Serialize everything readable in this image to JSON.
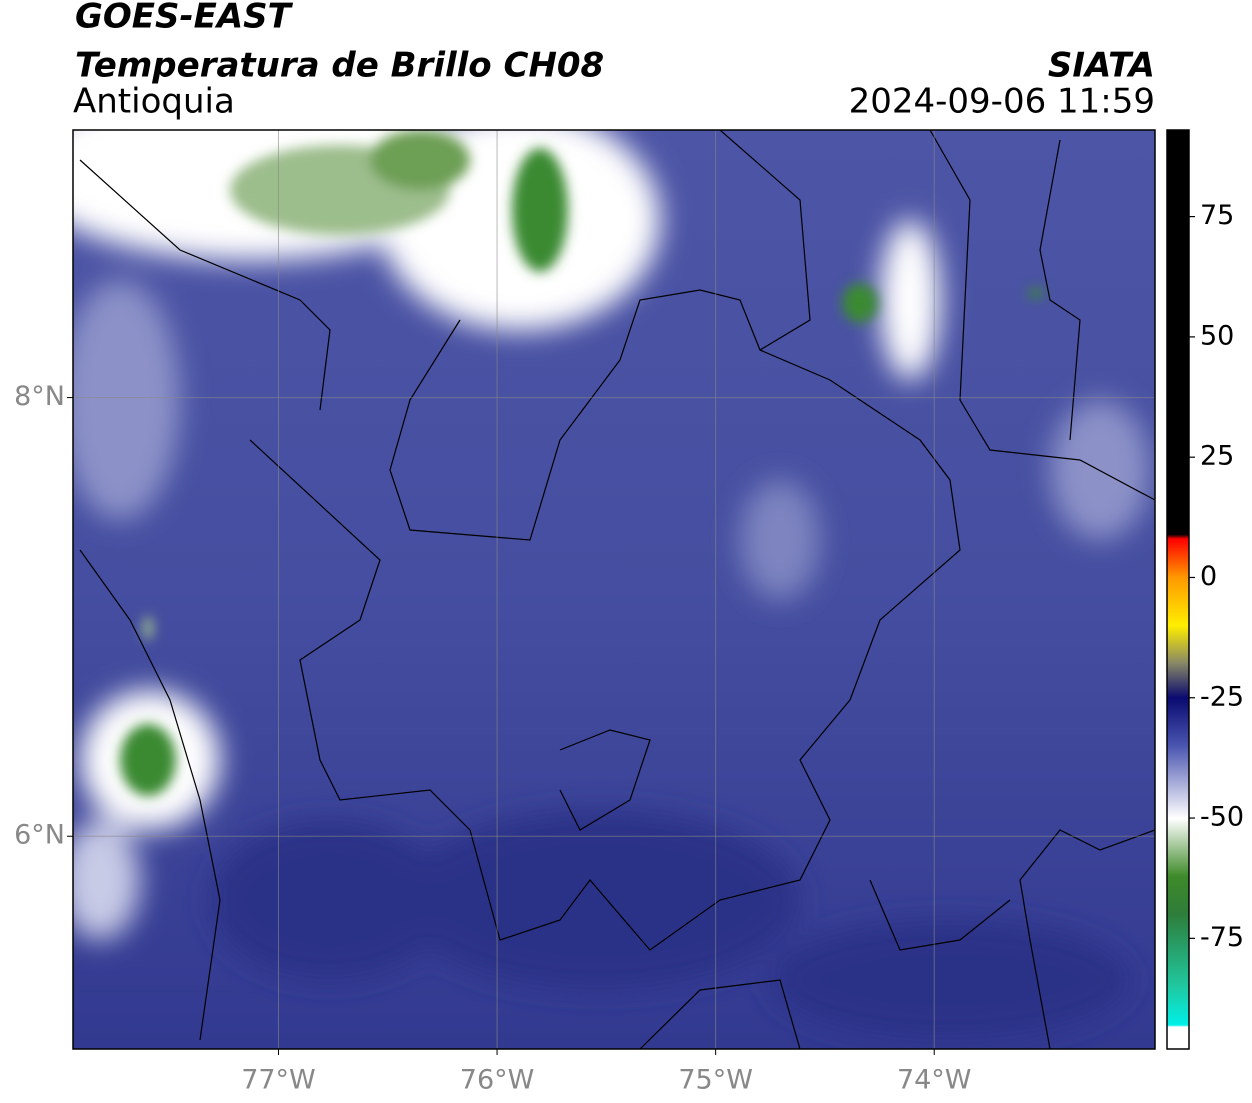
{
  "header": {
    "title": "GOES-EAST",
    "subtitle": "Temperatura de Brillo CH08",
    "region": "Antioquia",
    "source": "SIATA",
    "timestamp": "2024-09-06 11:59"
  },
  "map": {
    "xlim": [
      -77.94,
      -72.99
    ],
    "ylim": [
      5.03,
      9.22
    ],
    "xticks": [
      {
        "value": -77,
        "label": "77°W"
      },
      {
        "value": -76,
        "label": "76°W"
      },
      {
        "value": -75,
        "label": "75°W"
      },
      {
        "value": -74,
        "label": "74°W"
      }
    ],
    "yticks": [
      {
        "value": 8,
        "label": "8°N"
      },
      {
        "value": 6,
        "label": "6°N"
      }
    ],
    "grid": true
  },
  "colorbar": {
    "lim": [
      -98,
      93
    ],
    "ticks": [
      75,
      50,
      25,
      0,
      -25,
      -50,
      -75
    ]
  }
}
